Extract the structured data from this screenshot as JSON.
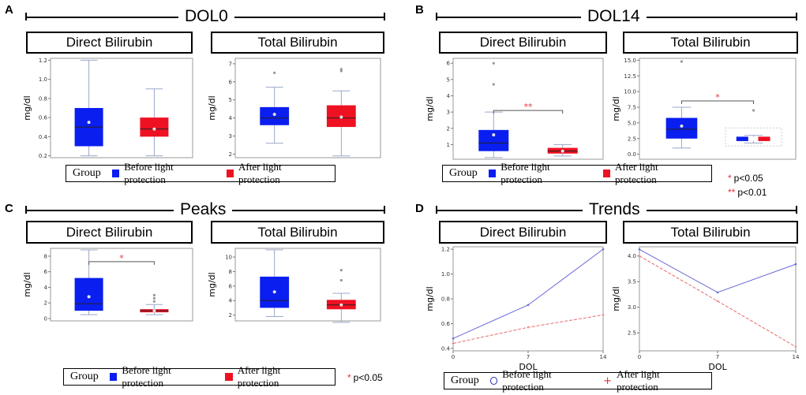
{
  "panels": [
    {
      "label": "A",
      "title": "DOL0"
    },
    {
      "label": "B",
      "title": "DOL14"
    },
    {
      "label": "C",
      "title": "Peaks"
    },
    {
      "label": "D",
      "title": "Trends"
    }
  ],
  "subtitles": {
    "direct": "Direct Bilirubin",
    "total": "Total Bilirubin"
  },
  "legend": {
    "title": "Group",
    "before": "Before light protection",
    "after": "After light protection"
  },
  "significance": {
    "p05": "p<0.05",
    "p01": "p<0.01",
    "star1": "*",
    "star2": "**"
  },
  "colors": {
    "before": "#0a1ef0",
    "after": "#ee1122",
    "sig": "#e8303a",
    "trend_before": "#6a6ad8",
    "trend_after": "#e86a6a"
  },
  "chart_data": [
    {
      "id": "A-direct",
      "type": "box",
      "ylabel": "mg/dl",
      "ylim": [
        0.18,
        1.22
      ],
      "ticks": [
        "0.2",
        "0.4",
        "0.6",
        "0.8",
        "1.0",
        "1.2"
      ],
      "groups": [
        {
          "name": "Before light protection",
          "min": 0.2,
          "q1": 0.3,
          "median": 0.5,
          "q3": 0.7,
          "max": 1.2,
          "mean": 0.55,
          "outliers": []
        },
        {
          "name": "After light protection",
          "min": 0.2,
          "q1": 0.4,
          "median": 0.48,
          "q3": 0.6,
          "max": 0.9,
          "mean": 0.48,
          "outliers": []
        }
      ]
    },
    {
      "id": "A-total",
      "type": "box",
      "ylabel": "mg/dl",
      "ylim": [
        1.8,
        7.3
      ],
      "ticks": [
        "2",
        "3",
        "4",
        "5",
        "6",
        "7"
      ],
      "groups": [
        {
          "name": "Before light protection",
          "min": 2.6,
          "q1": 3.6,
          "median": 4.0,
          "q3": 4.6,
          "max": 5.7,
          "mean": 4.2,
          "outliers": [
            6.5
          ]
        },
        {
          "name": "After light protection",
          "min": 1.9,
          "q1": 3.5,
          "median": 4.0,
          "q3": 4.7,
          "max": 5.5,
          "mean": 4.05,
          "outliers": [
            6.6,
            6.7
          ]
        }
      ]
    },
    {
      "id": "B-direct",
      "type": "box",
      "ylabel": "mg/dl",
      "ylim": [
        0.1,
        6.3
      ],
      "ticks": [
        "1",
        "2",
        "3",
        "4",
        "5",
        "6"
      ],
      "groups": [
        {
          "name": "Before light protection",
          "min": 0.2,
          "q1": 0.6,
          "median": 1.1,
          "q3": 1.9,
          "max": 3.0,
          "mean": 1.6,
          "outliers": [
            4.7,
            6.0
          ]
        },
        {
          "name": "After light protection",
          "min": 0.3,
          "q1": 0.45,
          "median": 0.6,
          "q3": 0.8,
          "max": 1.0,
          "mean": 0.6,
          "outliers": []
        }
      ],
      "bracket": {
        "y": 3.1,
        "label": "**"
      }
    },
    {
      "id": "B-total",
      "type": "box",
      "ylabel": "mg/dl",
      "ylim": [
        -0.8,
        15.3
      ],
      "ticks": [
        "0.0",
        "2.5",
        "5.0",
        "7.5",
        "10.0",
        "12.5",
        "15.0"
      ],
      "groups": [
        {
          "name": "Before light protection",
          "min": 1.0,
          "q1": 2.5,
          "median": 4.0,
          "q3": 5.8,
          "max": 7.5,
          "mean": 4.5,
          "outliers": [
            14.8
          ]
        },
        {
          "name": "After light protection",
          "min": 1.8,
          "q1": 2.1,
          "median": 2.4,
          "q3": 2.8,
          "max": 3.0,
          "mean": 2.4,
          "outliers": [
            7.0
          ],
          "double": true
        }
      ],
      "bracket": {
        "y": 8.5,
        "label": "*"
      }
    },
    {
      "id": "C-direct",
      "type": "box",
      "ylabel": "mg/dl",
      "ylim": [
        -0.3,
        9.0
      ],
      "ticks": [
        "0",
        "2",
        "4",
        "6",
        "8"
      ],
      "groups": [
        {
          "name": "Before light protection",
          "min": 0.5,
          "q1": 1.0,
          "median": 1.9,
          "q3": 5.2,
          "max": 8.8,
          "mean": 2.8,
          "outliers": []
        },
        {
          "name": "After light protection",
          "min": 0.5,
          "q1": 0.8,
          "median": 1.0,
          "q3": 1.2,
          "max": 1.8,
          "mean": 1.0,
          "outliers": [
            2.2,
            2.6,
            3.0
          ]
        }
      ],
      "bracket": {
        "y": 7.3,
        "label": "*"
      }
    },
    {
      "id": "C-total",
      "type": "box",
      "ylabel": "mg/dl",
      "ylim": [
        1.2,
        11.2
      ],
      "ticks": [
        "2",
        "4",
        "6",
        "8",
        "10"
      ],
      "groups": [
        {
          "name": "Before light protection",
          "min": 1.8,
          "q1": 3.0,
          "median": 4.0,
          "q3": 7.3,
          "max": 11.0,
          "mean": 5.2,
          "outliers": []
        },
        {
          "name": "After light protection",
          "min": 1.0,
          "q1": 2.8,
          "median": 3.4,
          "q3": 4.1,
          "max": 5.0,
          "mean": 3.4,
          "outliers": [
            6.8,
            8.2
          ]
        }
      ]
    },
    {
      "id": "D-direct",
      "type": "line",
      "ylabel": "mg/dl",
      "xlabel": "DOL",
      "x": [
        0,
        7,
        14
      ],
      "xticks": [
        "0",
        "7",
        "14"
      ],
      "ylim": [
        0.38,
        1.22
      ],
      "ticks": [
        "0.4",
        "0.6",
        "0.8",
        "1.0",
        "1.2"
      ],
      "series": [
        {
          "name": "Before light protection",
          "values": [
            0.48,
            0.75,
            1.2
          ]
        },
        {
          "name": "After light protection",
          "values": [
            0.44,
            0.57,
            0.67
          ]
        }
      ]
    },
    {
      "id": "D-total",
      "type": "line",
      "ylabel": "mg/dl",
      "xlabel": "DOL",
      "x": [
        0,
        7,
        14
      ],
      "xticks": [
        "0",
        "7",
        "14"
      ],
      "ylim": [
        2.15,
        4.18
      ],
      "ticks": [
        "2.5",
        "3.0",
        "3.5",
        "4.0"
      ],
      "series": [
        {
          "name": "Before light protection",
          "values": [
            4.13,
            3.29,
            3.84
          ]
        },
        {
          "name": "After light protection",
          "values": [
            4.0,
            3.12,
            2.23
          ]
        }
      ]
    }
  ]
}
